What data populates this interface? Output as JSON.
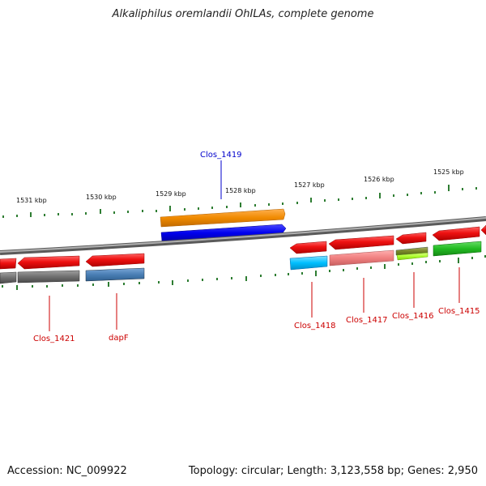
{
  "title": "Alkaliphilus oremlandii OhILAs, complete genome",
  "footer": {
    "accession": "Accession: NC_009922",
    "summary": "Topology: circular; Length: 3,123,558 bp; Genes: 2,950"
  },
  "ruler": {
    "labels": [
      "1531 kbp",
      "1530 kbp",
      "1529 kbp",
      "1528 kbp",
      "1527 kbp",
      "1526 kbp",
      "1525 kbp"
    ]
  },
  "genes": [
    {
      "name": "Clos_1419",
      "color": "#0000cc"
    },
    {
      "name": "Clos_1421",
      "color": "#cc0000"
    },
    {
      "name": "dapF",
      "color": "#cc0000"
    },
    {
      "name": "Clos_1418",
      "color": "#cc0000"
    },
    {
      "name": "Clos_1417",
      "color": "#cc0000"
    },
    {
      "name": "Clos_1416",
      "color": "#cc0000"
    },
    {
      "name": "Clos_1415",
      "color": "#cc0000"
    }
  ],
  "colors": {
    "backbone": "#8a8a8a",
    "tick": "#2e7d32",
    "cds_red": "#ee1111",
    "grey_feature": "#707070",
    "steelblue_feature": "#4a7fb5",
    "orange_feature": "#f08a00",
    "blue_feature": "#0000ee",
    "cyan_feature": "#00bfff",
    "pink_feature": "#f08080",
    "olive_feature": "#7a8a2a",
    "lime_feature": "#adff2f",
    "green_feature": "#22bb22"
  }
}
